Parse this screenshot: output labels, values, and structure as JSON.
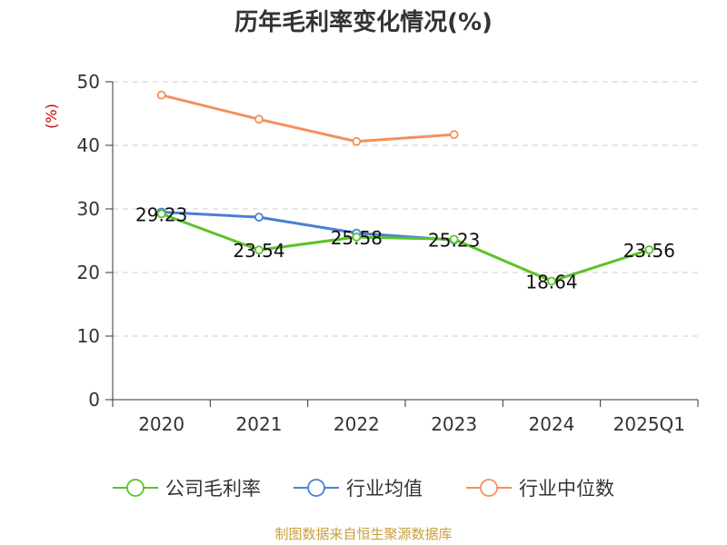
{
  "chart_data": {
    "type": "line",
    "title": "历年毛利率变化情况(%)",
    "ylabel": "(%)",
    "categories": [
      "2020",
      "2021",
      "2022",
      "2023",
      "2024",
      "2025Q1"
    ],
    "yticks": [
      "0",
      "10",
      "20",
      "30",
      "40",
      "50"
    ],
    "ylim": [
      0,
      50
    ],
    "grid": true,
    "legend_position": "bottom",
    "series": [
      {
        "name": "公司毛利率",
        "color": "#5cc228",
        "values": [
          29.23,
          23.54,
          25.58,
          25.23,
          18.64,
          23.56
        ],
        "labels": [
          "29.23",
          "23.54",
          "25.58",
          "25.23",
          "18.64",
          "23.56"
        ]
      },
      {
        "name": "行业均值",
        "color": "#4a7fd6",
        "values": [
          29.5,
          28.7,
          26.2,
          25.1,
          null,
          null
        ]
      },
      {
        "name": "行业中位数",
        "color": "#f5905a",
        "values": [
          47.9,
          44.1,
          40.6,
          41.7,
          null,
          null
        ]
      }
    ],
    "source": "制图数据来自恒生聚源数据库"
  }
}
